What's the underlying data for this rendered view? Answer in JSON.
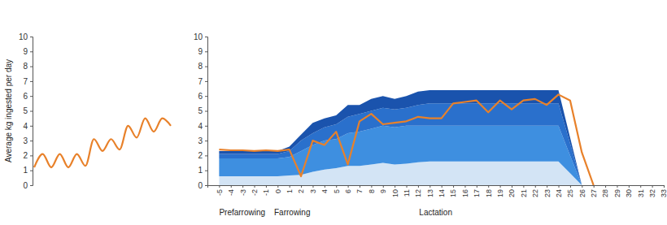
{
  "chart_data": [
    {
      "type": "line",
      "y_label": "Average kg ingested per day",
      "categories": [
        null,
        null,
        null,
        null,
        null,
        null,
        null,
        null,
        null,
        null,
        null,
        null,
        null,
        null,
        null,
        null,
        null
      ],
      "values": [
        1.2,
        2.1,
        1.2,
        2.1,
        1.2,
        2.1,
        1.3,
        3.1,
        2.3,
        3.1,
        2.4,
        4.0,
        3.2,
        4.5,
        3.6,
        4.5,
        4.0
      ],
      "color": "#e8812a",
      "ylim": [
        0,
        10
      ],
      "yticks": [
        0,
        1,
        2,
        3,
        4,
        5,
        6,
        7,
        8,
        9,
        10
      ],
      "tick_labels": "y"
    },
    {
      "type": "line",
      "x": [
        -5,
        -4,
        -3,
        -2,
        -1,
        0,
        1,
        2,
        3,
        4,
        5,
        6,
        7,
        8,
        9,
        10,
        11,
        12,
        13,
        14,
        15,
        16,
        17,
        18,
        19,
        20,
        21,
        22,
        23,
        24,
        25,
        26,
        27
      ],
      "xlim": [
        -6,
        33
      ],
      "xticks": [
        -5,
        -4,
        -3,
        -2,
        -1,
        0,
        1,
        2,
        3,
        4,
        5,
        6,
        7,
        8,
        9,
        10,
        11,
        12,
        13,
        14,
        15,
        16,
        17,
        18,
        19,
        20,
        21,
        22,
        23,
        24,
        25,
        26,
        27,
        28,
        29,
        30,
        31,
        32,
        33
      ],
      "ylim": [
        0,
        10
      ],
      "yticks": [
        0,
        1,
        2,
        3,
        4,
        5,
        6,
        7,
        8,
        9,
        10
      ],
      "stacked": true,
      "series": [
        {
          "type": "area",
          "color": "#d3e4f5",
          "values": [
            0.6,
            0.6,
            0.6,
            0.6,
            0.6,
            0.6,
            0.65,
            0.7,
            0.9,
            1.05,
            1.15,
            1.3,
            1.3,
            1.4,
            1.5,
            1.4,
            1.45,
            1.55,
            1.6,
            1.6,
            1.6,
            1.6,
            1.6,
            1.6,
            1.6,
            1.6,
            1.6,
            1.6,
            1.6,
            1.6,
            0.8,
            0,
            null
          ]
        },
        {
          "type": "area",
          "color": "#3e8fe0",
          "values": [
            1.2,
            1.2,
            1.2,
            1.2,
            1.2,
            1.2,
            1.25,
            1.6,
            1.8,
            1.95,
            1.95,
            2.2,
            2.3,
            2.4,
            2.5,
            2.5,
            2.55,
            2.45,
            2.4,
            2.4,
            2.4,
            2.4,
            2.4,
            2.4,
            2.4,
            2.4,
            2.4,
            2.4,
            2.4,
            2.4,
            1.2,
            0,
            null
          ]
        },
        {
          "type": "area",
          "color": "#2a70cc",
          "values": [
            0.3,
            0.3,
            0.3,
            0.3,
            0.3,
            0.3,
            0.4,
            0.7,
            0.8,
            0.9,
            1.0,
            1.1,
            1.2,
            1.2,
            1.2,
            1.2,
            1.2,
            1.4,
            1.5,
            1.5,
            1.5,
            1.5,
            1.5,
            1.5,
            1.5,
            1.5,
            1.5,
            1.5,
            1.5,
            1.5,
            0.8,
            0,
            null
          ]
        },
        {
          "type": "area",
          "color": "#1a53ad",
          "values": [
            0.2,
            0.2,
            0.2,
            0.2,
            0.2,
            0.2,
            0.3,
            0.4,
            0.7,
            0.6,
            0.6,
            0.8,
            0.6,
            0.8,
            0.8,
            0.7,
            0.8,
            0.9,
            0.9,
            0.9,
            0.9,
            0.9,
            0.9,
            0.9,
            0.9,
            0.9,
            0.9,
            0.9,
            0.9,
            0.9,
            0.4,
            0,
            null
          ]
        },
        {
          "type": "line",
          "color": "#e8812a",
          "values": [
            2.4,
            2.35,
            2.35,
            2.3,
            2.35,
            2.3,
            2.4,
            0.6,
            3.0,
            2.7,
            3.6,
            1.4,
            4.3,
            4.8,
            4.1,
            4.2,
            4.3,
            4.6,
            4.5,
            4.5,
            5.5,
            5.6,
            5.7,
            4.9,
            5.7,
            5.1,
            5.7,
            5.8,
            5.4,
            6.1,
            5.7,
            2.2,
            0
          ]
        }
      ],
      "annotations": [
        {
          "text": "Prefarrowing",
          "x": -5
        },
        {
          "text": "Farrowing",
          "x": -0.3
        },
        {
          "text": "Lactation",
          "x": 12.1
        }
      ]
    }
  ]
}
